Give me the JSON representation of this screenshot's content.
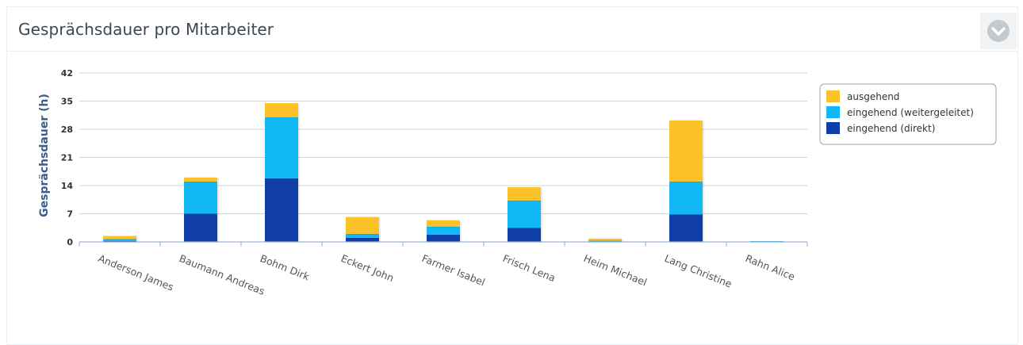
{
  "panel": {
    "title": "Gesprächsdauer pro Mitarbeiter",
    "collapse_icon": "chevron-down-icon"
  },
  "chart_data": {
    "type": "bar",
    "stacked": true,
    "title": "",
    "xlabel": "",
    "ylabel": "Gesprächsdauer (h)",
    "ylim": [
      0,
      42
    ],
    "yticks": [
      0,
      7,
      14,
      21,
      28,
      35,
      42
    ],
    "grid": true,
    "legend_position": "right",
    "categories": [
      "Anderson James",
      "Baumann Andreas",
      "Bohm Dirk",
      "Eckert John",
      "Farmer Isabel",
      "Frisch Lena",
      "Heim Michael",
      "Lang Christine",
      "Rahn Alice"
    ],
    "series": [
      {
        "name": "eingehend (direkt)",
        "color": "#0f3ea8",
        "values": [
          0.2,
          7,
          15.8,
          1,
          1.8,
          3.5,
          0.1,
          6.8,
          0.1
        ]
      },
      {
        "name": "eingehend (weitergeleitet)",
        "color": "#12b7f5",
        "values": [
          0.5,
          8,
          15.2,
          1,
          2,
          6.8,
          0.2,
          8.2,
          0.1
        ]
      },
      {
        "name": "ausgehend",
        "color": "#fcc22a",
        "values": [
          0.8,
          1,
          3.5,
          4.2,
          1.6,
          3.3,
          0.5,
          15.2,
          0
        ]
      }
    ]
  }
}
